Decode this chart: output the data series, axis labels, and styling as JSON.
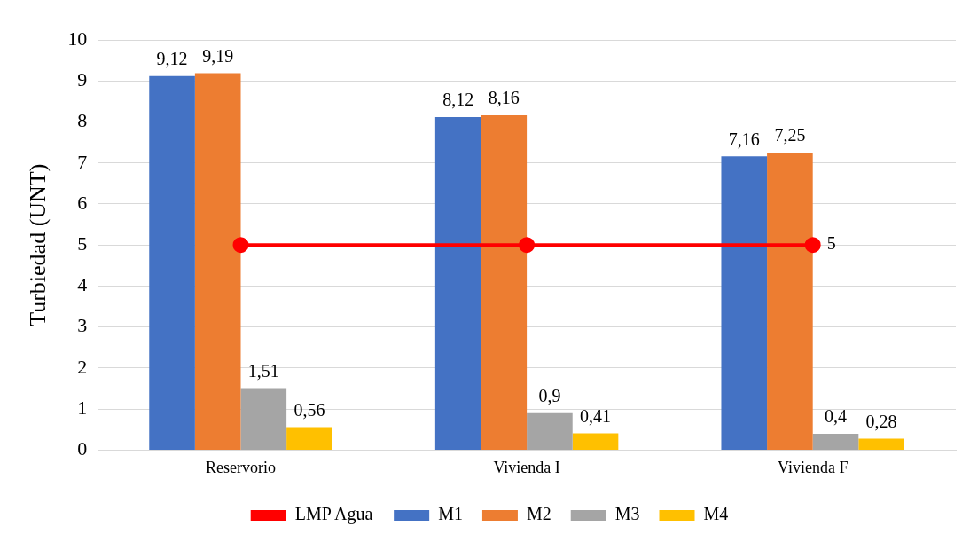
{
  "chart_data": {
    "type": "bar",
    "ylabel": "Turbiedad (UNT)",
    "categories": [
      "Reservorio",
      "Vivienda I",
      "Vivienda F"
    ],
    "series": [
      {
        "name": "M1",
        "color": "#4472c4",
        "values": [
          9.12,
          8.12,
          7.16
        ],
        "value_labels": [
          "9,12",
          "8,12",
          "7,16"
        ]
      },
      {
        "name": "M2",
        "color": "#ed7d31",
        "values": [
          9.19,
          8.16,
          7.25
        ],
        "value_labels": [
          "9,19",
          "8,16",
          "7,25"
        ]
      },
      {
        "name": "M3",
        "color": "#a5a5a5",
        "values": [
          1.51,
          0.9,
          0.4
        ],
        "value_labels": [
          "1,51",
          "0,9",
          "0,4"
        ]
      },
      {
        "name": "M4",
        "color": "#ffc000",
        "values": [
          0.56,
          0.41,
          0.28
        ],
        "value_labels": [
          "0,56",
          "0,41",
          "0,28"
        ]
      },
      {
        "name": "LMP Agua",
        "type": "line",
        "color": "#ff0000",
        "values": [
          5,
          5,
          5
        ],
        "value_labels": [
          null,
          null,
          "5"
        ]
      }
    ],
    "ylim": [
      0,
      10
    ],
    "yticks": [
      0,
      1,
      2,
      3,
      4,
      5,
      6,
      7,
      8,
      9,
      10
    ],
    "grid": "y",
    "legend": "bottom",
    "marker": "circle"
  }
}
